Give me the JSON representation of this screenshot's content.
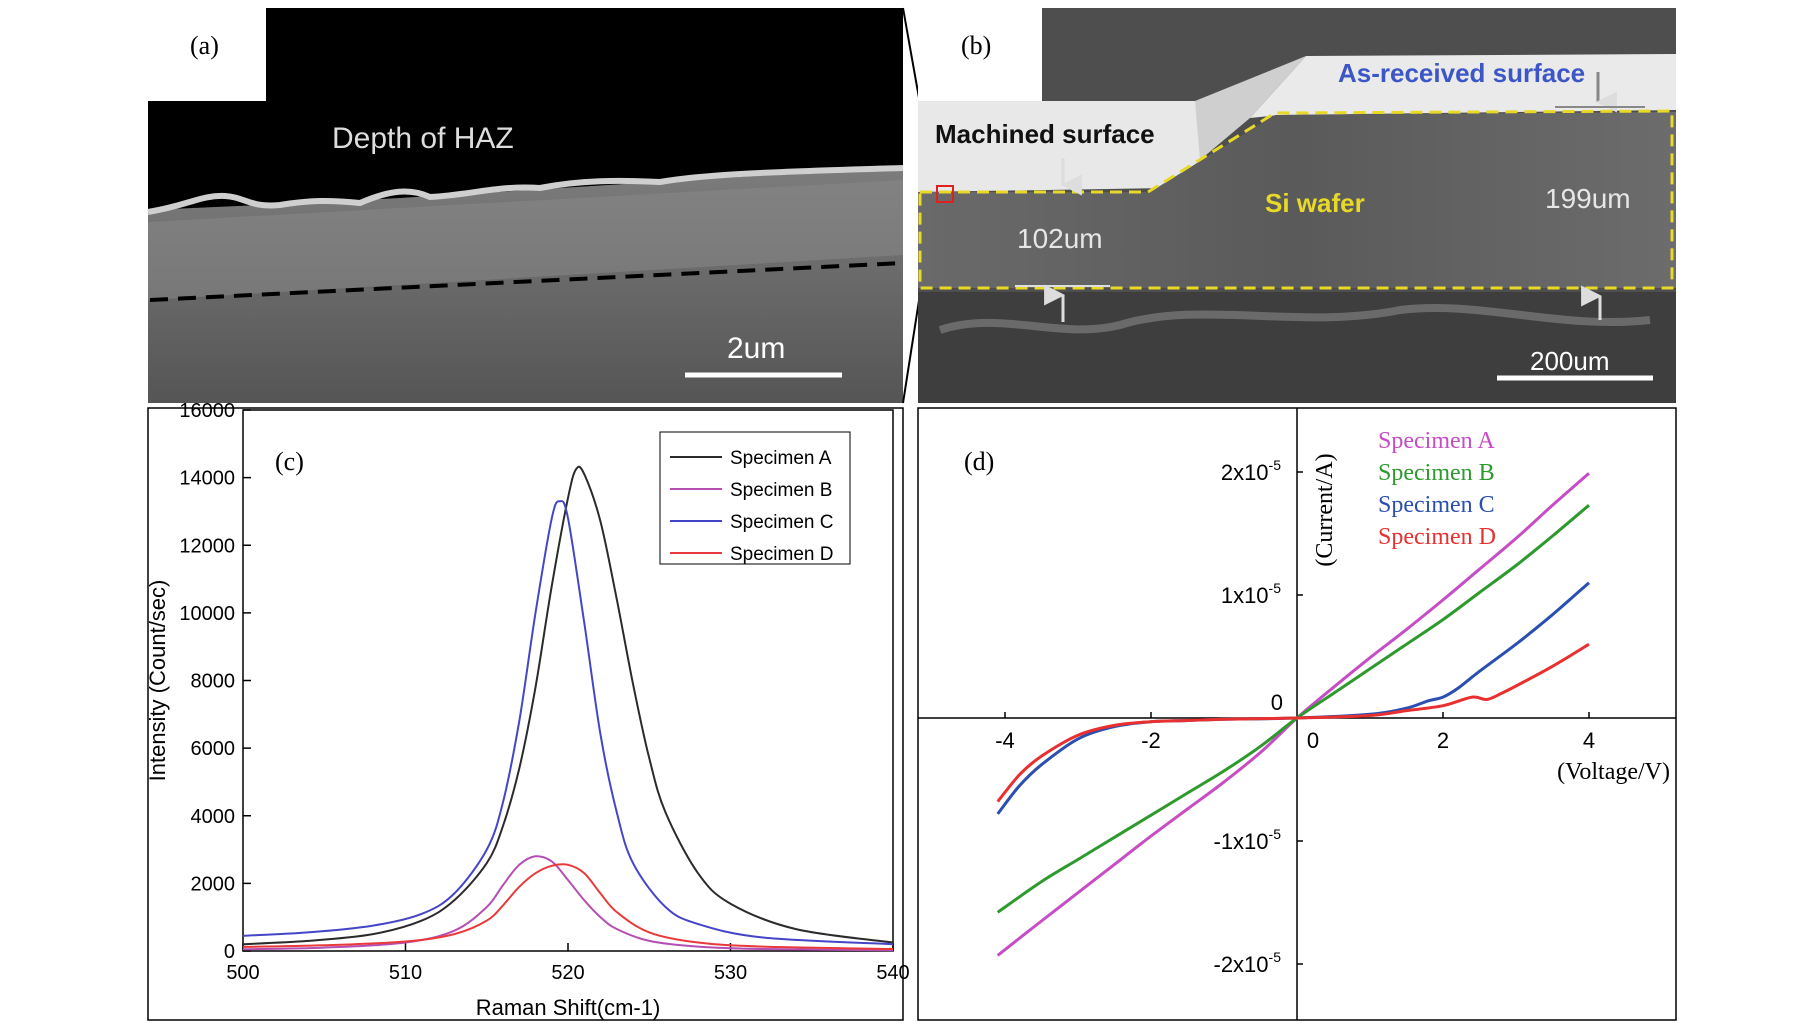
{
  "panels": {
    "a": {
      "label": "(a)",
      "annotation": "Depth of HAZ",
      "scalebar": "2um"
    },
    "b": {
      "label": "(b)",
      "as_received": "As-received surface",
      "machined": "Machined surface",
      "si_wafer": "Si wafer",
      "thickness_left": "102um",
      "thickness_right": "199um",
      "scalebar": "200um"
    }
  },
  "chart_data": [
    {
      "panel": "(c)",
      "type": "line",
      "xlabel": "Raman Shift(cm-1)",
      "ylabel": "Intensity (Count/sec)",
      "xlim": [
        500,
        540
      ],
      "ylim": [
        0,
        16000
      ],
      "xticks": [
        500,
        510,
        520,
        530,
        540
      ],
      "yticks": [
        0,
        2000,
        4000,
        6000,
        8000,
        10000,
        12000,
        14000,
        16000
      ],
      "legend_position": "top-right",
      "series": [
        {
          "name": "Specimen A",
          "color": "#2b2b2b",
          "x": [
            500,
            504,
            508,
            511,
            513,
            515,
            516,
            517,
            518,
            519,
            520,
            520.5,
            521,
            522,
            523,
            524,
            525,
            526,
            528,
            530,
            534,
            540
          ],
          "y": [
            200,
            300,
            500,
            900,
            1500,
            2600,
            3700,
            5400,
            7800,
            10800,
            13400,
            14250,
            14100,
            12700,
            10400,
            7900,
            5700,
            4100,
            2300,
            1400,
            650,
            250
          ]
        },
        {
          "name": "Specimen B",
          "color": "#b44fb4",
          "x": [
            500,
            505,
            510,
            513,
            515,
            516,
            517,
            518,
            519,
            520,
            521,
            522,
            523,
            525,
            528,
            532,
            540
          ],
          "y": [
            50,
            100,
            250,
            600,
            1300,
            1950,
            2550,
            2800,
            2650,
            2100,
            1500,
            1000,
            650,
            300,
            130,
            60,
            20
          ]
        },
        {
          "name": "Specimen C",
          "color": "#4545c8",
          "x": [
            500,
            504,
            508,
            511,
            513,
            515,
            516,
            517,
            518,
            519,
            519.5,
            520,
            521,
            522,
            523,
            524,
            526,
            528,
            532,
            540
          ],
          "y": [
            450,
            550,
            750,
            1100,
            1700,
            3000,
            4400,
            6800,
            10000,
            12800,
            13300,
            12800,
            9700,
            6400,
            4100,
            2600,
            1300,
            800,
            400,
            200
          ]
        },
        {
          "name": "Specimen D",
          "color": "#e83a3a",
          "x": [
            500,
            505,
            510,
            513,
            515,
            516,
            517,
            518,
            519,
            520,
            521,
            522,
            523,
            525,
            528,
            532,
            540
          ],
          "y": [
            120,
            170,
            280,
            500,
            900,
            1350,
            1900,
            2300,
            2520,
            2550,
            2300,
            1700,
            1150,
            550,
            250,
            130,
            60
          ]
        }
      ]
    },
    {
      "panel": "(d)",
      "type": "line",
      "xlabel": "(Voltage/V)",
      "ylabel": "(Current/A)",
      "xlim": [
        -5,
        5
      ],
      "ylim": [
        -2.6e-05,
        2.6e-05
      ],
      "xtick_labels": [
        {
          "value": -4,
          "text": "-4"
        },
        {
          "value": -2,
          "text": "-2"
        },
        {
          "value": 0,
          "text": "0"
        },
        {
          "value": 2,
          "text": "2"
        },
        {
          "value": 4,
          "text": "4"
        }
      ],
      "ytick_labels": [
        {
          "value": 2e-05,
          "mantissa": "2x10",
          "exp": "-5"
        },
        {
          "value": 1e-05,
          "mantissa": "1x10",
          "exp": "-5"
        },
        {
          "value": 0,
          "mantissa": "0",
          "exp": ""
        },
        {
          "value": -1e-05,
          "mantissa": "-1x10",
          "exp": "-5"
        },
        {
          "value": -2e-05,
          "mantissa": "-2x10",
          "exp": "-5"
        }
      ],
      "legend_position": "top-center",
      "series": [
        {
          "name": "Specimen A",
          "color": "#c64dc6",
          "x": [
            -4.1,
            -3.5,
            -3,
            -2.5,
            -2,
            -1.5,
            -1,
            -0.5,
            0,
            0.5,
            1,
            1.5,
            2,
            2.5,
            3,
            3.5,
            4
          ],
          "y": [
            -1.93e-05,
            -1.65e-05,
            -1.42e-05,
            -1.19e-05,
            -9.6e-06,
            -7.4e-06,
            -5.2e-06,
            -2.8e-06,
            0,
            2.5e-06,
            4.9e-06,
            7.2e-06,
            9.6e-06,
            1.21e-05,
            1.46e-05,
            1.73e-05,
            1.99e-05
          ]
        },
        {
          "name": "Specimen B",
          "color": "#2e9a2e",
          "x": [
            -4.1,
            -3.5,
            -3,
            -2.5,
            -2,
            -1.5,
            -1,
            -0.5,
            0,
            0.5,
            1,
            1.5,
            2,
            2.5,
            3,
            3.5,
            4
          ],
          "y": [
            -1.58e-05,
            -1.33e-05,
            -1.15e-05,
            -9.7e-06,
            -7.9e-06,
            -6.1e-06,
            -4.3e-06,
            -2.3e-06,
            0,
            2e-06,
            4e-06,
            6e-06,
            8e-06,
            1.02e-05,
            1.24e-05,
            1.48e-05,
            1.73e-05
          ]
        },
        {
          "name": "Specimen C",
          "color": "#2b4fb0",
          "x": [
            -4.1,
            -3.8,
            -3.5,
            -3,
            -2.5,
            -2,
            -1.5,
            -1,
            0,
            1,
            1.5,
            1.8,
            2,
            2.2,
            2.5,
            3,
            3.5,
            4
          ],
          "y": [
            -7.8e-06,
            -5.5e-06,
            -3.8e-06,
            -1.7e-06,
            -7e-07,
            -3e-07,
            -2e-07,
            -1e-07,
            0,
            3e-07,
            8e-07,
            1.4e-06,
            1.7e-06,
            2.4e-06,
            3.8e-06,
            6e-06,
            8.4e-06,
            1.1e-05
          ]
        },
        {
          "name": "Specimen D",
          "color": "#e83030",
          "x": [
            -4.1,
            -3.8,
            -3.5,
            -3,
            -2.5,
            -2,
            -1.5,
            -1,
            0,
            1,
            1.5,
            2,
            2.4,
            2.6,
            2.8,
            3,
            3.5,
            4
          ],
          "y": [
            -6.8e-06,
            -4.6e-06,
            -3.1e-06,
            -1.4e-06,
            -6e-07,
            -3e-07,
            -2e-07,
            -1e-07,
            0,
            2e-07,
            6e-07,
            1e-06,
            1.7e-06,
            1.5e-06,
            2e-06,
            2.6e-06,
            4.2e-06,
            6e-06
          ]
        }
      ]
    }
  ]
}
